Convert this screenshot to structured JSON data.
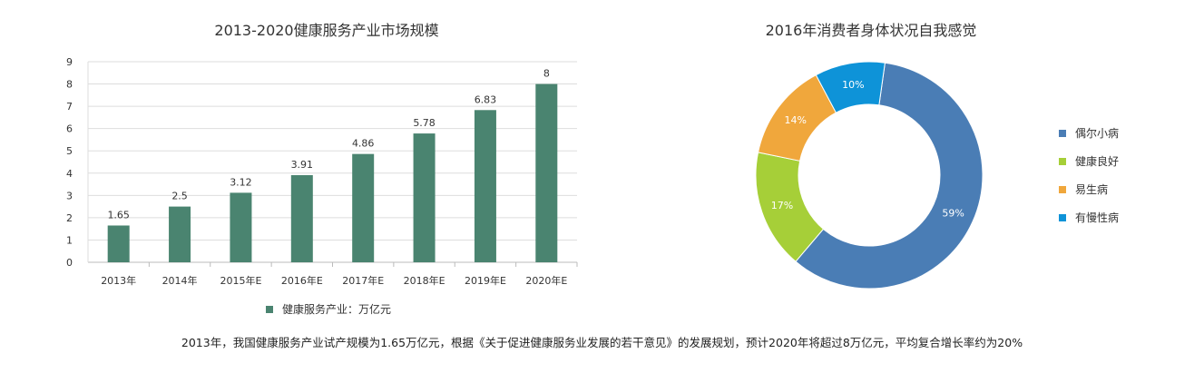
{
  "chart_data": [
    {
      "type": "bar",
      "title": "2013-2020健康服务产业市场规模",
      "categories": [
        "2013年",
        "2014年",
        "2015年E",
        "2016年E",
        "2017年E",
        "2018年E",
        "2019年E",
        "2020年E"
      ],
      "series": [
        {
          "name": "健康服务产业：万亿元",
          "values": [
            1.65,
            2.5,
            3.12,
            3.91,
            4.86,
            5.78,
            6.83,
            8
          ]
        }
      ],
      "data_labels": [
        "1.65",
        "2.5",
        "3.12",
        "3.91",
        "4.86",
        "5.78",
        "6.83",
        "8"
      ],
      "ylim": [
        0,
        9
      ],
      "yticks": [
        "0",
        "1",
        "2",
        "3",
        "4",
        "5",
        "6",
        "7",
        "8",
        "9"
      ],
      "grid": true,
      "legend_position": "bottom",
      "color": "#4a8470"
    },
    {
      "type": "pie",
      "donut": true,
      "title": "2016年消费者身体状况自我感觉",
      "labels": [
        "偶尔小病",
        "健康良好",
        "易生病",
        "有慢性病"
      ],
      "values": [
        59,
        17,
        14,
        10
      ],
      "data_labels": [
        "59%",
        "17%",
        "14%",
        "10%"
      ],
      "colors": [
        "#4a7db5",
        "#a6cf38",
        "#f0a73c",
        "#0e93d8"
      ],
      "legend_position": "right"
    }
  ],
  "caption": "2013年，我国健康服务产业试产规模为1.65万亿元，根据《关于促进健康服务业发展的若干意见》的发展规划，预计2020年将超过8万亿元，平均复合增长率约为20%"
}
